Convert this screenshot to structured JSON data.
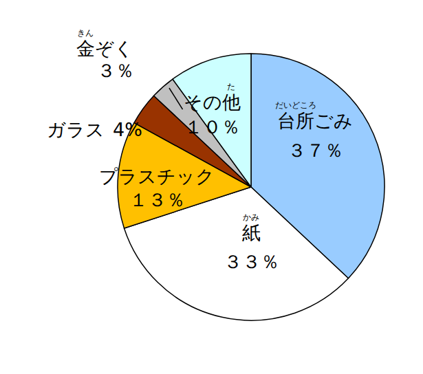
{
  "chart_data": {
    "type": "pie",
    "categories": [
      "台所ごみ",
      "紙",
      "プラスチック",
      "ガラス",
      "金ぞく",
      "その他"
    ],
    "values": [
      37,
      33,
      13,
      4,
      3,
      10
    ],
    "value_labels": [
      "３７％",
      "３３％",
      "１３％",
      "4%",
      "３％",
      "１０％"
    ],
    "colors": [
      "#99ccff",
      "#ffffff",
      "#ffc000",
      "#993300",
      "#c0c0c0",
      "#ccffff"
    ],
    "data_labels": true,
    "annotations": [
      {
        "text": "だいどころ",
        "on": "台所"
      },
      {
        "text": "かみ",
        "on": "紙"
      },
      {
        "text": "きん",
        "on": "金"
      },
      {
        "text": "た",
        "on": "他"
      }
    ]
  }
}
